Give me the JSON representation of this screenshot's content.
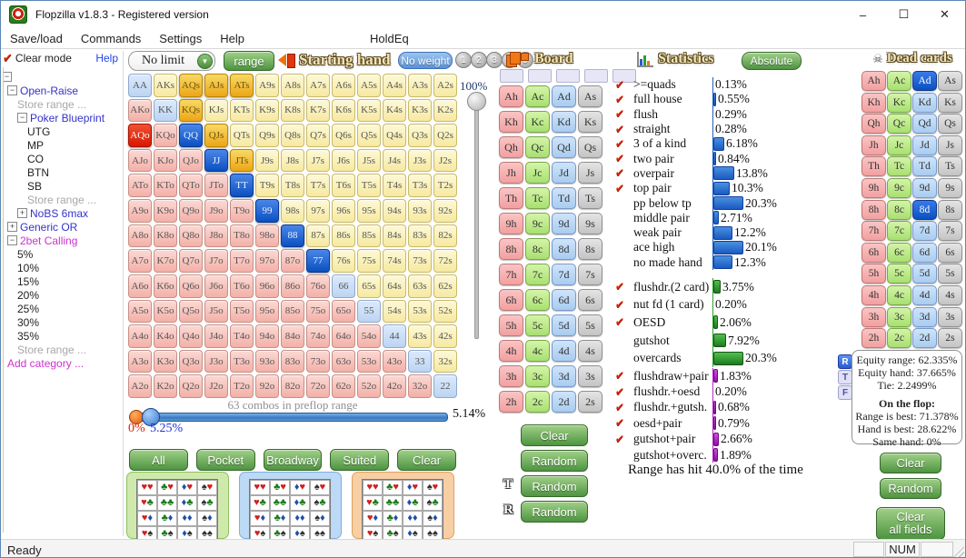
{
  "window": {
    "title": "Flopzilla v1.8.3 - Registered version",
    "minimize": "–",
    "maximize": "☐",
    "close": "✕"
  },
  "menu": {
    "items": [
      "Save/load",
      "Commands",
      "Settings",
      "Help"
    ],
    "right_item": "HoldEq"
  },
  "sidebar": {
    "clear_mode": "Clear mode",
    "help": "Help",
    "tree": [
      {
        "label": "Open-Raise",
        "color": "blue",
        "box": "minus",
        "indent": 0
      },
      {
        "label": "Store range ...",
        "color": "gray",
        "box": null,
        "indent": 1
      },
      {
        "label": "Poker Blueprint",
        "color": "blue",
        "box": "minus",
        "indent": 1
      },
      {
        "label": "UTG",
        "color": "black",
        "box": null,
        "indent": 2
      },
      {
        "label": "MP",
        "color": "black",
        "box": null,
        "indent": 2
      },
      {
        "label": "CO",
        "color": "black",
        "box": null,
        "indent": 2
      },
      {
        "label": "BTN",
        "color": "black",
        "box": null,
        "indent": 2
      },
      {
        "label": "SB",
        "color": "black",
        "box": null,
        "indent": 2
      },
      {
        "label": "Store range ...",
        "color": "gray",
        "box": null,
        "indent": 2
      },
      {
        "label": "NoBS 6max",
        "color": "blue",
        "box": "plus",
        "indent": 1
      },
      {
        "label": "Generic OR",
        "color": "blue",
        "box": "plus",
        "indent": 0
      },
      {
        "label": "2bet Calling",
        "color": "magenta",
        "box": "minus",
        "indent": 0
      },
      {
        "label": "5%",
        "color": "black",
        "box": null,
        "indent": 1
      },
      {
        "label": "10%",
        "color": "black",
        "box": null,
        "indent": 1
      },
      {
        "label": "15%",
        "color": "black",
        "box": null,
        "indent": 1
      },
      {
        "label": "20%",
        "color": "black",
        "box": null,
        "indent": 1
      },
      {
        "label": "25%",
        "color": "black",
        "box": null,
        "indent": 1
      },
      {
        "label": "30%",
        "color": "black",
        "box": null,
        "indent": 1
      },
      {
        "label": "35%",
        "color": "black",
        "box": null,
        "indent": 1
      },
      {
        "label": "Store range ...",
        "color": "gray",
        "box": null,
        "indent": 1
      },
      {
        "label": "Add category ...",
        "color": "magenta",
        "box": null,
        "indent": 0
      }
    ]
  },
  "toolbar": {
    "limit_value": "No limit",
    "range_label": "range",
    "starting_hand_title": "Starting hand",
    "no_weight_label": "No weight",
    "weight_buttons": [
      "1",
      "2",
      "3",
      "4",
      "5"
    ]
  },
  "matrix": {
    "rows": [
      [
        "AA",
        "AKs",
        "AQs",
        "AJs",
        "ATs",
        "A9s",
        "A8s",
        "A7s",
        "A6s",
        "A5s",
        "A4s",
        "A3s",
        "A2s"
      ],
      [
        "AKo",
        "KK",
        "KQs",
        "KJs",
        "KTs",
        "K9s",
        "K8s",
        "K7s",
        "K6s",
        "K5s",
        "K4s",
        "K3s",
        "K2s"
      ],
      [
        "AQo",
        "KQo",
        "QQ",
        "QJs",
        "QTs",
        "Q9s",
        "Q8s",
        "Q7s",
        "Q6s",
        "Q5s",
        "Q4s",
        "Q3s",
        "Q2s"
      ],
      [
        "AJo",
        "KJo",
        "QJo",
        "JJ",
        "JTs",
        "J9s",
        "J8s",
        "J7s",
        "J6s",
        "J5s",
        "J4s",
        "J3s",
        "J2s"
      ],
      [
        "ATo",
        "KTo",
        "QTo",
        "JTo",
        "TT",
        "T9s",
        "T8s",
        "T7s",
        "T6s",
        "T5s",
        "T4s",
        "T3s",
        "T2s"
      ],
      [
        "A9o",
        "K9o",
        "Q9o",
        "J9o",
        "T9o",
        "99",
        "98s",
        "97s",
        "96s",
        "95s",
        "94s",
        "93s",
        "92s"
      ],
      [
        "A8o",
        "K8o",
        "Q8o",
        "J8o",
        "T8o",
        "98o",
        "88",
        "87s",
        "86s",
        "85s",
        "84s",
        "83s",
        "82s"
      ],
      [
        "A7o",
        "K7o",
        "Q7o",
        "J7o",
        "T7o",
        "97o",
        "87o",
        "77",
        "76s",
        "75s",
        "74s",
        "73s",
        "72s"
      ],
      [
        "A6o",
        "K6o",
        "Q6o",
        "J6o",
        "T6o",
        "96o",
        "86o",
        "76o",
        "66",
        "65s",
        "64s",
        "63s",
        "62s"
      ],
      [
        "A5o",
        "K5o",
        "Q5o",
        "J5o",
        "T5o",
        "95o",
        "85o",
        "75o",
        "65o",
        "55",
        "54s",
        "53s",
        "52s"
      ],
      [
        "A4o",
        "K4o",
        "Q4o",
        "J4o",
        "T4o",
        "94o",
        "84o",
        "74o",
        "64o",
        "54o",
        "44",
        "43s",
        "42s"
      ],
      [
        "A3o",
        "K3o",
        "Q3o",
        "J3o",
        "T3o",
        "93o",
        "83o",
        "73o",
        "63o",
        "53o",
        "43o",
        "33",
        "32s"
      ],
      [
        "A2o",
        "K2o",
        "Q2o",
        "J2o",
        "T2o",
        "92o",
        "82o",
        "72o",
        "62o",
        "52o",
        "42o",
        "32o",
        "22"
      ]
    ],
    "selected_gold": [
      "AQs",
      "AJs",
      "ATs",
      "KQs",
      "QJs",
      "JTs"
    ],
    "selected_red": [
      "AQo"
    ],
    "selected_blue": [
      "QQ",
      "JJ",
      "TT",
      "99",
      "88",
      "77"
    ]
  },
  "matrix_footer": {
    "combos_text": "63 combos in preflop range",
    "slider_top_label": "100%",
    "slider_right_value": "5.14%",
    "slider_left_red": "0%",
    "slider_left_blue": "5.25%"
  },
  "range_buttons": [
    "All",
    "Pocket",
    "Broadway",
    "Suited",
    "Clear"
  ],
  "suit_panels": {
    "suits": [
      "h",
      "c",
      "d",
      "s"
    ],
    "glyphs": {
      "h": "♥",
      "c": "♣",
      "d": "♦",
      "s": "♠"
    },
    "panels": [
      "green",
      "blue",
      "orange"
    ]
  },
  "board": {
    "title": "Board",
    "slots": 5,
    "ranks": [
      "A",
      "K",
      "Q",
      "J",
      "T",
      "9",
      "8",
      "7",
      "6",
      "5",
      "4",
      "3",
      "2"
    ],
    "suits": [
      "h",
      "c",
      "d",
      "s"
    ],
    "clear_label": "Clear",
    "random_label": "Random",
    "turn_label": "T",
    "river_label": "R"
  },
  "statistics": {
    "title": "Statistics",
    "absolute_label": "Absolute",
    "made_hands": [
      {
        "label": ">=quads",
        "check": true,
        "value": "0.13%"
      },
      {
        "label": "full house",
        "check": true,
        "value": "0.55%"
      },
      {
        "label": "flush",
        "check": true,
        "value": "0.29%"
      },
      {
        "label": "straight",
        "check": true,
        "value": "0.28%"
      },
      {
        "label": "3 of a kind",
        "check": true,
        "value": "6.18%"
      },
      {
        "label": "two pair",
        "check": true,
        "value": "0.84%"
      },
      {
        "label": "overpair",
        "check": true,
        "value": "13.8%"
      },
      {
        "label": "top pair",
        "check": true,
        "value": "10.3%"
      },
      {
        "label": "pp below tp",
        "check": false,
        "value": "20.3%"
      },
      {
        "label": "middle pair",
        "check": false,
        "value": "2.71%"
      },
      {
        "label": "weak pair",
        "check": false,
        "value": "12.2%"
      },
      {
        "label": "ace high",
        "check": false,
        "value": "20.1%"
      },
      {
        "label": "no made hand",
        "check": false,
        "value": "12.3%"
      }
    ],
    "draws": [
      {
        "label": "flushdr.(2 card)",
        "check": true,
        "value": "3.75%"
      },
      {
        "label": "nut fd (1 card)",
        "check": true,
        "value": "0.20%"
      },
      {
        "label": "OESD",
        "check": true,
        "value": "2.06%"
      },
      {
        "label": "gutshot",
        "check": false,
        "value": "7.92%"
      },
      {
        "label": "overcards",
        "check": false,
        "value": "20.3%"
      }
    ],
    "combo_draws": [
      {
        "label": "flushdraw+pair",
        "check": true,
        "value": "1.83%"
      },
      {
        "label": "flushdr.+oesd",
        "check": true,
        "value": "0.20%"
      },
      {
        "label": "flushdr.+gutsh.",
        "check": true,
        "value": "0.68%"
      },
      {
        "label": "oesd+pair",
        "check": true,
        "value": "0.79%"
      },
      {
        "label": "gutshot+pair",
        "check": true,
        "value": "2.66%"
      },
      {
        "label": "gutshot+overc.",
        "check": false,
        "value": "1.89%"
      }
    ],
    "range_hit_text": "Range has hit 40.0% of the time"
  },
  "dead_cards": {
    "title": "Dead cards",
    "selected": [
      "Ad",
      "8d"
    ],
    "clear_label": "Clear",
    "random_label": "Random",
    "clear_all_line1": "Clear",
    "clear_all_line2": "all fields"
  },
  "equity": {
    "range_label": "Equity range: 62.335%",
    "hand_label": "Equity hand: 37.665%",
    "tie_label": "Tie: 2.2499%",
    "flop_header": "On the flop:",
    "range_best": "Range is best: 71.378%",
    "hand_best": "Hand is best: 28.622%",
    "same_hand": "Same hand: 0%",
    "side_buttons": [
      "R",
      "T",
      "F"
    ]
  },
  "statusbar": {
    "ready": "Ready",
    "num": "NUM"
  },
  "colors": {
    "accent_blue": "#1a5ac0",
    "accent_green": "#1e7a1e",
    "accent_purple": "#9010a8",
    "selected_gold": "#eca616"
  }
}
